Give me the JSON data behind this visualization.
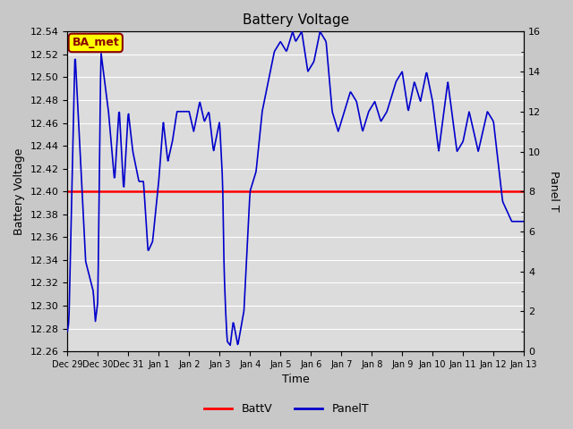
{
  "title": "Battery Voltage",
  "xlabel": "Time",
  "ylabel_left": "Battery Voltage",
  "ylabel_right": "Panel T",
  "batt_v": 12.4,
  "ylim_left": [
    12.26,
    12.54
  ],
  "ylim_right": [
    0,
    16
  ],
  "yticks_right": [
    0,
    2,
    4,
    6,
    8,
    10,
    12,
    14,
    16
  ],
  "background_color": "#dcdcdc",
  "grid_color": "#ffffff",
  "batt_color": "#ff0000",
  "panel_color": "#0000cc",
  "fig_bg": "#c8c8c8",
  "annotation_text": "BA_met",
  "annotation_bg": "#ffff00",
  "annotation_border": "#8b0000",
  "annotation_text_color": "#8b0000",
  "x_tick_labels": [
    "Dec 29",
    "Dec 30",
    "Dec 31",
    "Jan 1",
    "Jan 2",
    "Jan 3",
    "Jan 4",
    "Jan 5",
    "Jan 6",
    "Jan 7",
    "Jan 8",
    "Jan 9",
    "Jan 10",
    "Jan 11",
    "Jan 12",
    "Jan 13"
  ],
  "panel_t_keypoints_x": [
    0.0,
    0.05,
    0.25,
    0.6,
    0.85,
    0.92,
    1.0,
    1.1,
    1.35,
    1.55,
    1.7,
    1.85,
    2.0,
    2.15,
    2.35,
    2.5,
    2.65,
    2.8,
    3.0,
    3.15,
    3.3,
    3.45,
    3.6,
    3.8,
    4.0,
    4.15,
    4.35,
    4.5,
    4.65,
    4.8,
    5.0,
    5.1,
    5.15,
    5.2,
    5.25,
    5.35,
    5.45,
    5.6,
    5.8,
    6.0,
    6.2,
    6.4,
    6.6,
    6.8,
    7.0,
    7.2,
    7.4,
    7.5,
    7.7,
    7.9,
    8.1,
    8.3,
    8.5,
    8.7,
    8.9,
    9.1,
    9.3,
    9.5,
    9.7,
    9.9,
    10.1,
    10.3,
    10.5,
    10.8,
    11.0,
    11.2,
    11.4,
    11.6,
    11.8,
    12.0,
    12.2,
    12.5,
    12.8,
    13.0,
    13.2,
    13.5,
    13.8,
    14.0,
    14.3,
    14.6,
    15.0
  ],
  "panel_t_keypoints_y": [
    1.0,
    1.5,
    15.0,
    4.5,
    3.0,
    1.5,
    2.5,
    15.0,
    12.0,
    8.5,
    12.2,
    8.0,
    12.0,
    10.0,
    8.5,
    8.5,
    5.0,
    5.5,
    8.5,
    11.5,
    9.5,
    10.5,
    12.0,
    12.0,
    12.0,
    11.0,
    12.5,
    11.5,
    12.0,
    10.0,
    11.5,
    8.5,
    4.0,
    2.0,
    0.5,
    0.3,
    1.5,
    0.3,
    2.0,
    8.0,
    9.0,
    12.0,
    13.5,
    15.0,
    15.5,
    15.0,
    16.0,
    15.5,
    16.0,
    14.0,
    14.5,
    16.0,
    15.5,
    12.0,
    11.0,
    12.0,
    13.0,
    12.5,
    11.0,
    12.0,
    12.5,
    11.5,
    12.0,
    13.5,
    14.0,
    12.0,
    13.5,
    12.5,
    14.0,
    12.5,
    10.0,
    13.5,
    10.0,
    10.5,
    12.0,
    10.0,
    12.0,
    11.5,
    7.5,
    6.5,
    6.5
  ]
}
